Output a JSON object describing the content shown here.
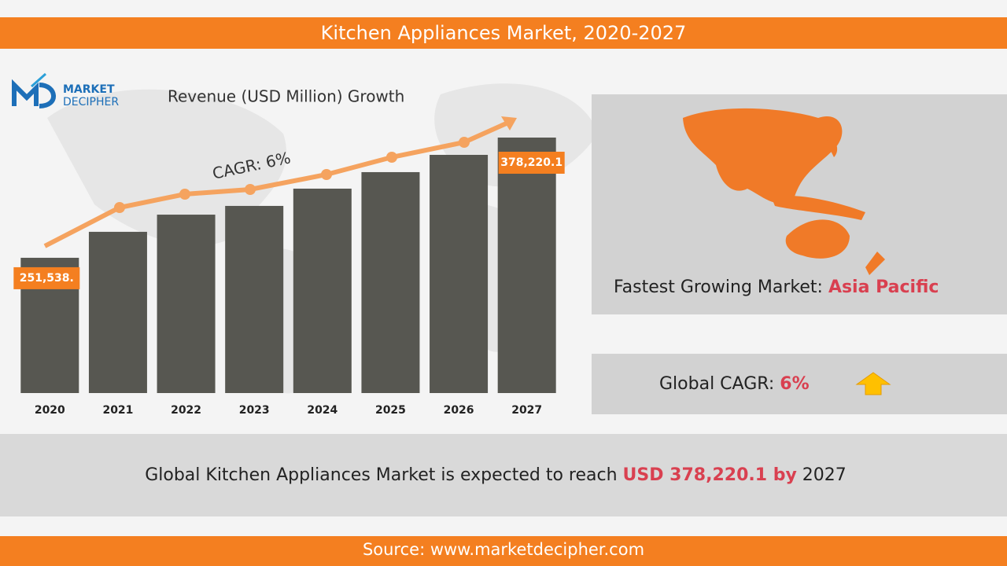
{
  "chart_data": {
    "type": "bar",
    "title": "Kitchen Appliances Market, 2020-2027",
    "subtitle": "Revenue (USD Million) Growth",
    "annotation": "CAGR: 6%",
    "categories": [
      "2020",
      "2021",
      "2022",
      "2023",
      "2024",
      "2025",
      "2026",
      "2027"
    ],
    "values": [
      251538,
      278900,
      297000,
      306200,
      324400,
      341800,
      360000,
      378220.1
    ],
    "value_labels": [
      "251,538.",
      null,
      null,
      null,
      null,
      null,
      null,
      "378,220.1"
    ],
    "color": "#575751",
    "ylim": [
      109000,
      378220.1
    ]
  },
  "logo": {
    "line1": "MARKET",
    "line2": "DECIPHER"
  },
  "region_panel": {
    "label": "Fastest Growing Market: ",
    "value": "Asia Pacific"
  },
  "cagr_panel": {
    "label": "Global CAGR: ",
    "value": "6%"
  },
  "summary": {
    "text": "Global Kitchen Appliances Market is expected to reach ",
    "amount": "USD 378,220.1",
    "by": " by",
    "year": " 2027"
  },
  "source": "Source: www.marketdecipher.com"
}
